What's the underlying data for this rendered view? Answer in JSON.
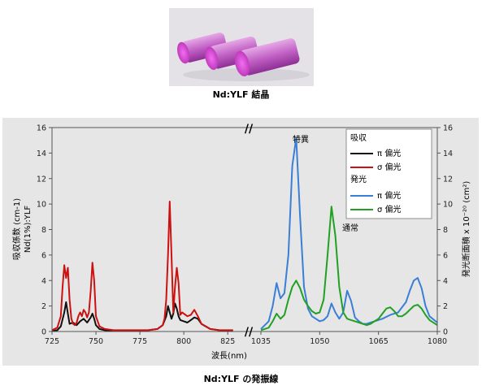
{
  "photo": {
    "caption": "Nd:YLF 結晶"
  },
  "figure_caption": "Nd:YLF の発振線",
  "chart_data": {
    "type": "line",
    "xlabel": "波長(nm)",
    "ylabel_left": [
      "吸収係数 (cm-1)",
      "Nd(1%):YLF"
    ],
    "ylabel_right": "発光断面積 x 10⁻²⁰ (cm²)",
    "ylim": [
      0,
      16
    ],
    "yticks": [
      0,
      2,
      4,
      6,
      8,
      10,
      12,
      14,
      16
    ],
    "x_left_range": [
      725,
      830
    ],
    "x_left_ticks": [
      725,
      750,
      775,
      800,
      825
    ],
    "x_right_range": [
      1035,
      1080
    ],
    "x_right_ticks": [
      1035,
      1050,
      1065,
      1080
    ],
    "axis_break": "//",
    "grid": false,
    "legend_position": "top-right",
    "legend_groups": [
      {
        "title": "吸収",
        "entries": [
          "π 偏光",
          "σ 偏光"
        ]
      },
      {
        "title": "発光",
        "entries": [
          "π 偏光",
          "σ 偏光"
        ]
      }
    ],
    "annotations": [
      {
        "text": "特異",
        "x": 1044,
        "y": 15.2
      },
      {
        "text": "通常",
        "x": 1055,
        "y": 8.1
      }
    ],
    "colors": {
      "abs_pi": "#111111",
      "abs_sigma": "#cc1111",
      "em_pi": "#3a7fd5",
      "em_sigma": "#22a022"
    },
    "series": [
      {
        "name": "吸収 π 偏光",
        "axis": "left",
        "x": [
          725,
          728,
          730,
          732,
          733,
          734,
          735,
          737,
          739,
          741,
          743,
          745,
          747,
          748,
          749,
          750,
          752,
          755,
          760,
          765,
          770,
          775,
          780,
          785,
          788,
          790,
          791,
          792,
          793,
          794,
          795,
          796,
          797,
          798,
          800,
          802,
          804,
          806,
          808,
          810,
          815,
          820,
          825,
          828
        ],
        "y": [
          0.05,
          0.1,
          0.4,
          1.5,
          2.3,
          1.4,
          0.6,
          0.7,
          0.5,
          0.8,
          1.0,
          0.7,
          1.1,
          1.4,
          1.0,
          0.5,
          0.2,
          0.1,
          0.05,
          0.05,
          0.05,
          0.05,
          0.1,
          0.2,
          0.5,
          1.2,
          2.0,
          1.5,
          1.0,
          1.4,
          2.2,
          1.8,
          1.2,
          0.9,
          0.8,
          0.7,
          0.9,
          1.1,
          1.0,
          0.6,
          0.2,
          0.1,
          0.05,
          0.05
        ]
      },
      {
        "name": "吸収 σ 偏光",
        "axis": "left",
        "x": [
          725,
          728,
          730,
          731,
          732,
          733,
          734,
          735,
          736,
          737,
          738,
          739,
          740,
          741,
          742,
          743,
          744,
          745,
          746,
          747,
          748,
          749,
          750,
          752,
          755,
          760,
          765,
          770,
          775,
          780,
          785,
          788,
          789,
          790,
          791,
          792,
          793,
          794,
          795,
          796,
          797,
          798,
          799,
          800,
          802,
          804,
          806,
          808,
          810,
          815,
          820,
          825,
          828
        ],
        "y": [
          0.1,
          0.3,
          1.2,
          3.5,
          5.2,
          4.2,
          5.0,
          2.5,
          1.0,
          0.6,
          0.5,
          0.7,
          1.2,
          1.5,
          1.2,
          1.7,
          1.5,
          1.1,
          1.5,
          3.2,
          5.4,
          4.0,
          1.2,
          0.4,
          0.2,
          0.1,
          0.1,
          0.1,
          0.1,
          0.1,
          0.2,
          0.5,
          1.0,
          2.5,
          6.0,
          10.2,
          6.0,
          1.5,
          3.5,
          5.0,
          3.8,
          1.3,
          1.5,
          1.4,
          1.2,
          1.3,
          1.7,
          1.2,
          0.6,
          0.2,
          0.1,
          0.1,
          0.1
        ]
      },
      {
        "name": "発光 π 偏光",
        "axis": "right",
        "x": [
          1035,
          1037,
          1038,
          1039,
          1040,
          1041,
          1042,
          1043,
          1044,
          1045,
          1046,
          1047,
          1048,
          1049,
          1050,
          1051,
          1052,
          1053,
          1054,
          1055,
          1056,
          1057,
          1058,
          1059,
          1060,
          1061,
          1062,
          1063,
          1064,
          1066,
          1068,
          1070,
          1072,
          1073,
          1074,
          1075,
          1076,
          1077,
          1078,
          1080
        ],
        "y": [
          0.2,
          0.8,
          2.0,
          3.8,
          2.6,
          3.0,
          6.0,
          13.0,
          15.2,
          9.0,
          3.5,
          1.8,
          1.2,
          1.0,
          0.8,
          0.9,
          1.2,
          2.2,
          1.5,
          1.0,
          1.5,
          3.2,
          2.4,
          1.1,
          0.8,
          0.6,
          0.6,
          0.7,
          0.8,
          1.0,
          1.3,
          1.5,
          2.3,
          3.2,
          4.0,
          4.2,
          3.4,
          2.0,
          1.2,
          0.7
        ]
      },
      {
        "name": "発光 σ 偏光",
        "axis": "right",
        "x": [
          1035,
          1037,
          1038,
          1039,
          1040,
          1041,
          1042,
          1043,
          1044,
          1045,
          1046,
          1047,
          1048,
          1049,
          1050,
          1051,
          1052,
          1053,
          1054,
          1055,
          1056,
          1057,
          1058,
          1059,
          1060,
          1061,
          1062,
          1063,
          1064,
          1065,
          1066,
          1067,
          1068,
          1069,
          1070,
          1071,
          1072,
          1073,
          1074,
          1075,
          1076,
          1077,
          1078,
          1080
        ],
        "y": [
          0.1,
          0.3,
          0.8,
          1.4,
          1.0,
          1.3,
          2.5,
          3.5,
          4.0,
          3.4,
          2.5,
          2.0,
          1.6,
          1.4,
          1.5,
          2.5,
          6.0,
          9.8,
          7.5,
          3.5,
          1.5,
          1.0,
          0.9,
          0.8,
          0.7,
          0.6,
          0.5,
          0.6,
          0.8,
          1.0,
          1.4,
          1.8,
          1.9,
          1.6,
          1.2,
          1.2,
          1.4,
          1.7,
          2.0,
          2.1,
          1.8,
          1.3,
          0.9,
          0.5
        ]
      }
    ]
  }
}
